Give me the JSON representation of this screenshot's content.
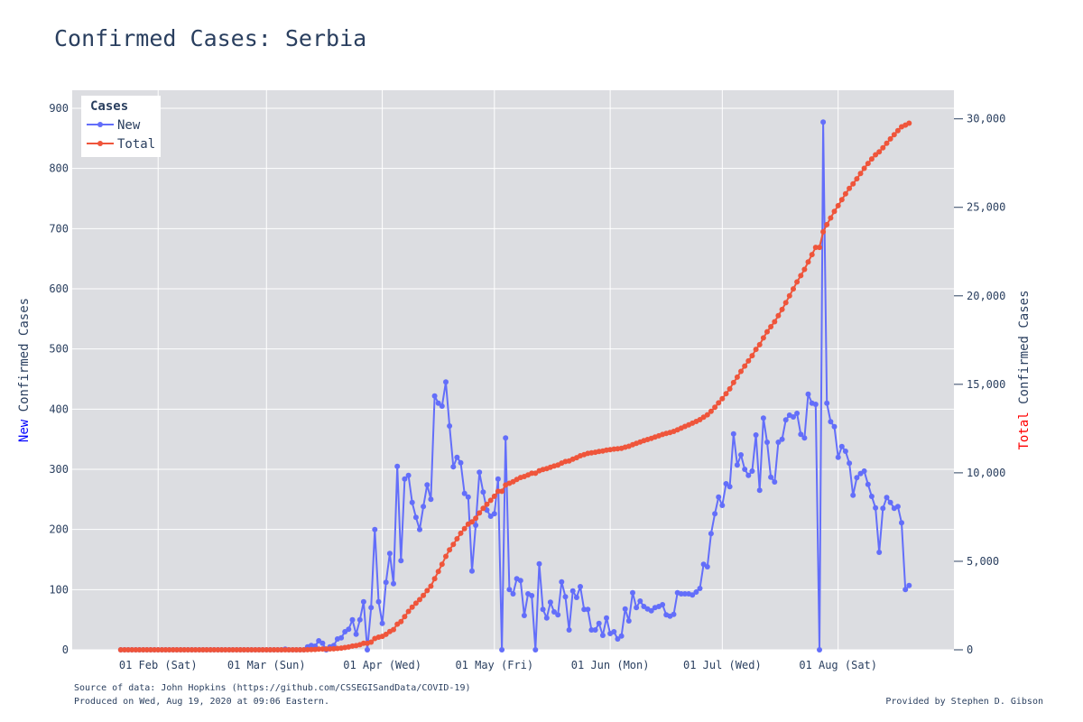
{
  "chart_data": {
    "type": "line",
    "title": "Confirmed Cases: Serbia",
    "x_ticks": [
      "01 Feb (Sat)",
      "01 Mar (Sun)",
      "01 Apr (Wed)",
      "01 May (Fri)",
      "01 Jun (Mon)",
      "01 Jul (Wed)",
      "01 Aug (Sat)"
    ],
    "x_tick_dates": [
      "2020-02-01",
      "2020-03-01",
      "2020-04-01",
      "2020-05-01",
      "2020-06-01",
      "2020-07-01",
      "2020-08-01"
    ],
    "xlim": [
      "2020-01-09",
      "2020-09-01"
    ],
    "y_left": {
      "title_prefix": "New",
      "title_rest": " Confirmed Cases",
      "title_prefix_color": "#0000ff",
      "ylim": [
        0,
        930
      ],
      "ticks": [
        0,
        100,
        200,
        300,
        400,
        500,
        600,
        700,
        800,
        900
      ],
      "tick_labels": [
        "0",
        "100",
        "200",
        "300",
        "400",
        "500",
        "600",
        "700",
        "800",
        "900"
      ]
    },
    "y_right": {
      "title_prefix": "Total",
      "title_rest": " Confirmed Cases",
      "title_prefix_color": "#ff0000",
      "ylim": [
        0,
        31616
      ],
      "ticks": [
        0,
        5000,
        10000,
        15000,
        20000,
        25000,
        30000
      ],
      "tick_labels": [
        "0",
        "5,000",
        "10,000",
        "15,000",
        "20,000",
        "25,000",
        "30,000"
      ]
    },
    "grid": true,
    "legend": {
      "title": "Cases",
      "position": "top-left"
    },
    "start_date": "2020-01-22",
    "series": [
      {
        "name": "New",
        "color": "#636efa",
        "axis": "left",
        "values": [
          0,
          0,
          0,
          0,
          0,
          0,
          0,
          0,
          0,
          0,
          0,
          0,
          0,
          0,
          0,
          0,
          0,
          0,
          0,
          0,
          0,
          0,
          0,
          0,
          0,
          0,
          0,
          0,
          0,
          0,
          0,
          0,
          0,
          0,
          0,
          0,
          0,
          0,
          0,
          0,
          0,
          0,
          0,
          0,
          1,
          0,
          0,
          0,
          0,
          0,
          5,
          7,
          6,
          15,
          11,
          0,
          5,
          7,
          18,
          20,
          30,
          34,
          50,
          26,
          50,
          80,
          0,
          70,
          200,
          80,
          44,
          112,
          160,
          110,
          305,
          148,
          284,
          290,
          245,
          220,
          200,
          238,
          274,
          250,
          422,
          410,
          405,
          445,
          372,
          304,
          320,
          311,
          260,
          254,
          131,
          207,
          295,
          262,
          232,
          222,
          226,
          284,
          0,
          352,
          100,
          93,
          118,
          115,
          57,
          93,
          90,
          0,
          143,
          67,
          53,
          79,
          63,
          58,
          113,
          88,
          33,
          98,
          87,
          105,
          67,
          67,
          33,
          33,
          44,
          24,
          53,
          27,
          30,
          18,
          23,
          68,
          48,
          95,
          70,
          81,
          72,
          68,
          65,
          70,
          72,
          75,
          58,
          56,
          59,
          95,
          93,
          93,
          93,
          91,
          96,
          102,
          142,
          138,
          193,
          226,
          254,
          240,
          276,
          271,
          359,
          307,
          324,
          300,
          290,
          297,
          357,
          265,
          385,
          345,
          287,
          279,
          345,
          350,
          382,
          390,
          387,
          393,
          358,
          352,
          425,
          410,
          408,
          0,
          877,
          410,
          379,
          371,
          320,
          338,
          330,
          310,
          257,
          286,
          293,
          297,
          275,
          255,
          236,
          162,
          235,
          253,
          245,
          235,
          238,
          211,
          100,
          107
        ]
      },
      {
        "name": "Total",
        "color": "#ef553b",
        "axis": "right",
        "values": [
          0,
          0,
          0,
          0,
          0,
          0,
          0,
          0,
          0,
          0,
          0,
          0,
          0,
          0,
          0,
          0,
          0,
          0,
          0,
          0,
          0,
          0,
          0,
          0,
          0,
          0,
          0,
          0,
          0,
          0,
          0,
          0,
          0,
          0,
          0,
          0,
          0,
          0,
          0,
          0,
          0,
          0,
          0,
          0,
          1,
          1,
          1,
          1,
          1,
          1,
          6,
          13,
          19,
          34,
          45,
          45,
          50,
          57,
          75,
          95,
          125,
          159,
          209,
          235,
          285,
          365,
          365,
          435,
          635,
          715,
          759,
          871,
          1031,
          1141,
          1446,
          1594,
          1878,
          2168,
          2413,
          2633,
          2833,
          3071,
          3345,
          3595,
          4017,
          4427,
          4832,
          5277,
          5649,
          5953,
          6273,
          6584,
          6844,
          7098,
          7229,
          7436,
          7731,
          7993,
          8225,
          8447,
          8673,
          8957,
          8957,
          9309,
          9409,
          9502,
          9620,
          9735,
          9792,
          9885,
          9975,
          9975,
          10118,
          10185,
          10238,
          10317,
          10380,
          10438,
          10551,
          10639,
          10672,
          10770,
          10857,
          10962,
          11029,
          11096,
          11129,
          11162,
          11206,
          11230,
          11283,
          11310,
          11340,
          11358,
          11381,
          11449,
          11497,
          11592,
          11662,
          11743,
          11815,
          11883,
          11948,
          12018,
          12090,
          12165,
          12223,
          12279,
          12338,
          12433,
          12526,
          12619,
          12712,
          12803,
          12899,
          13001,
          13143,
          13281,
          13474,
          13700,
          13954,
          14194,
          14470,
          14741,
          15100,
          15407,
          15731,
          16031,
          16321,
          16618,
          16975,
          17240,
          17625,
          17970,
          18257,
          18536,
          18881,
          19231,
          19613,
          20003,
          20390,
          20783,
          21141,
          21493,
          21918,
          22328,
          22736,
          22736,
          23613,
          24023,
          24402,
          24773,
          25093,
          25431,
          25761,
          26071,
          26328,
          26614,
          26907,
          27204,
          27479,
          27734,
          27970,
          28132,
          28367,
          28620,
          28865,
          29100,
          29338,
          29549,
          29649,
          29756
        ]
      }
    ],
    "footer": {
      "source": "Source of data: John Hopkins (https://github.com/CSSEGISandData/COVID-19)",
      "produced": "Produced on Wed, Aug 19, 2020 at 09:06 Eastern.",
      "credit": "Provided by Stephen D. Gibson"
    },
    "colors": {
      "plot_bg": "#dcdde1",
      "grid": "#ffffff",
      "text": "#2a3f5f"
    }
  }
}
